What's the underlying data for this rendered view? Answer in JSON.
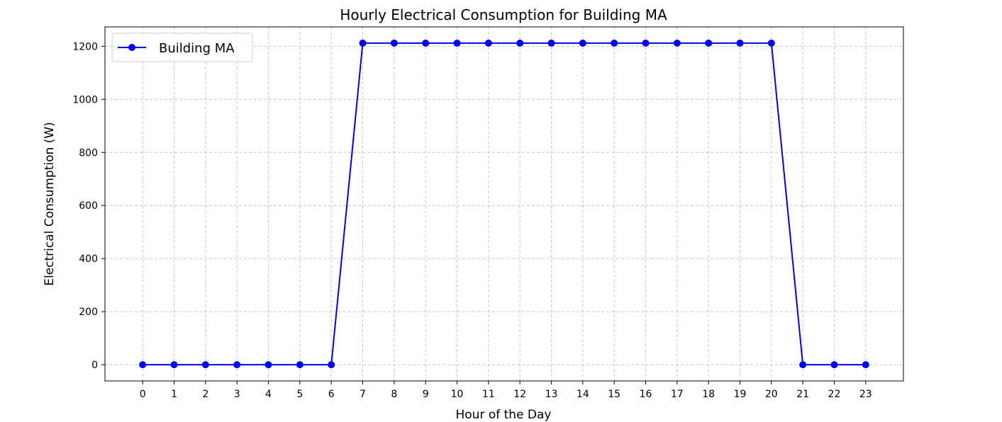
{
  "chart_data": {
    "type": "line",
    "title": "Hourly Electrical Consumption for Building MA",
    "xlabel": "Hour of the Day",
    "ylabel": "Electrical Consumption (W)",
    "x": [
      0,
      1,
      2,
      3,
      4,
      5,
      6,
      7,
      8,
      9,
      10,
      11,
      12,
      13,
      14,
      15,
      16,
      17,
      18,
      19,
      20,
      21,
      22,
      23
    ],
    "xticks": [
      "0",
      "1",
      "2",
      "3",
      "4",
      "5",
      "6",
      "7",
      "8",
      "9",
      "10",
      "11",
      "12",
      "13",
      "14",
      "15",
      "16",
      "17",
      "18",
      "19",
      "20",
      "21",
      "22",
      "23"
    ],
    "yticks": [
      0,
      200,
      400,
      600,
      800,
      1000,
      1200
    ],
    "xlim": [
      -1.2,
      24.2
    ],
    "ylim": [
      -61,
      1273
    ],
    "grid": true,
    "legend_position": "top-left",
    "series": [
      {
        "name": "Building MA",
        "color": "#0000ff",
        "marker": "circle",
        "values": [
          0,
          0,
          0,
          0,
          0,
          0,
          0,
          1212,
          1212,
          1212,
          1212,
          1212,
          1212,
          1212,
          1212,
          1212,
          1212,
          1212,
          1212,
          1212,
          1212,
          0,
          0,
          0
        ]
      }
    ]
  }
}
